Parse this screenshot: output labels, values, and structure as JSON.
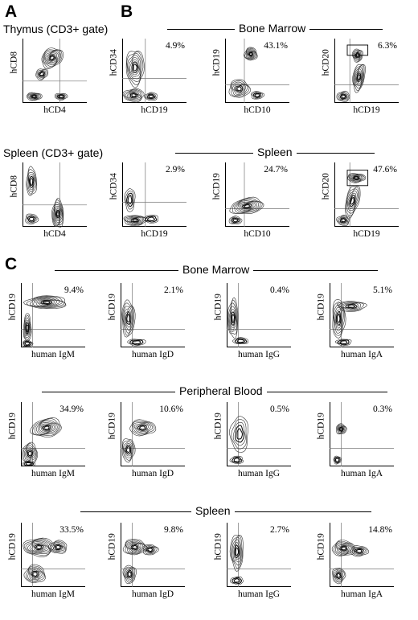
{
  "panels": {
    "A": {
      "letter": "A",
      "titles": [
        "Thymus (CD3+ gate)",
        "Spleen (CD3+ gate)"
      ]
    },
    "B": {
      "letter": "B",
      "headers": [
        "Bone Marrow",
        "Spleen"
      ]
    },
    "C": {
      "letter": "C",
      "headers": [
        "Bone Marrow",
        "Peripheral Blood",
        "Spleen"
      ]
    }
  },
  "plots": [
    {
      "x": "hCD4",
      "y": "hCD8",
      "pct": ""
    },
    {
      "x": "hCD19",
      "y": "hCD34",
      "pct": "4.9%"
    },
    {
      "x": "hCD10",
      "y": "hCD19",
      "pct": "43.1%"
    },
    {
      "x": "hCD19",
      "y": "hCD20",
      "pct": "6.3%"
    },
    {
      "x": "hCD4",
      "y": "hCD8",
      "pct": ""
    },
    {
      "x": "hCD19",
      "y": "hCD34",
      "pct": "2.9%"
    },
    {
      "x": "hCD10",
      "y": "hCD19",
      "pct": "24.7%"
    },
    {
      "x": "hCD19",
      "y": "hCD20",
      "pct": "47.6%"
    },
    {
      "x": "human IgM",
      "y": "hCD19",
      "pct": "9.4%"
    },
    {
      "x": "human IgD",
      "y": "hCD19",
      "pct": "2.1%"
    },
    {
      "x": "human IgG",
      "y": "hCD19",
      "pct": "0.4%"
    },
    {
      "x": "human IgA",
      "y": "hCD19",
      "pct": "5.1%"
    },
    {
      "x": "human IgM",
      "y": "hCD19",
      "pct": "34.9%"
    },
    {
      "x": "human IgD",
      "y": "hCD19",
      "pct": "10.6%"
    },
    {
      "x": "human IgG",
      "y": "hCD19",
      "pct": "0.5%"
    },
    {
      "x": "human IgA",
      "y": "hCD19",
      "pct": "0.3%"
    },
    {
      "x": "human IgM",
      "y": "hCD19",
      "pct": "33.5%"
    },
    {
      "x": "human IgD",
      "y": "hCD19",
      "pct": "9.8%"
    },
    {
      "x": "human IgG",
      "y": "hCD19",
      "pct": "2.7%"
    },
    {
      "x": "human IgA",
      "y": "hCD19",
      "pct": "14.8%"
    }
  ]
}
